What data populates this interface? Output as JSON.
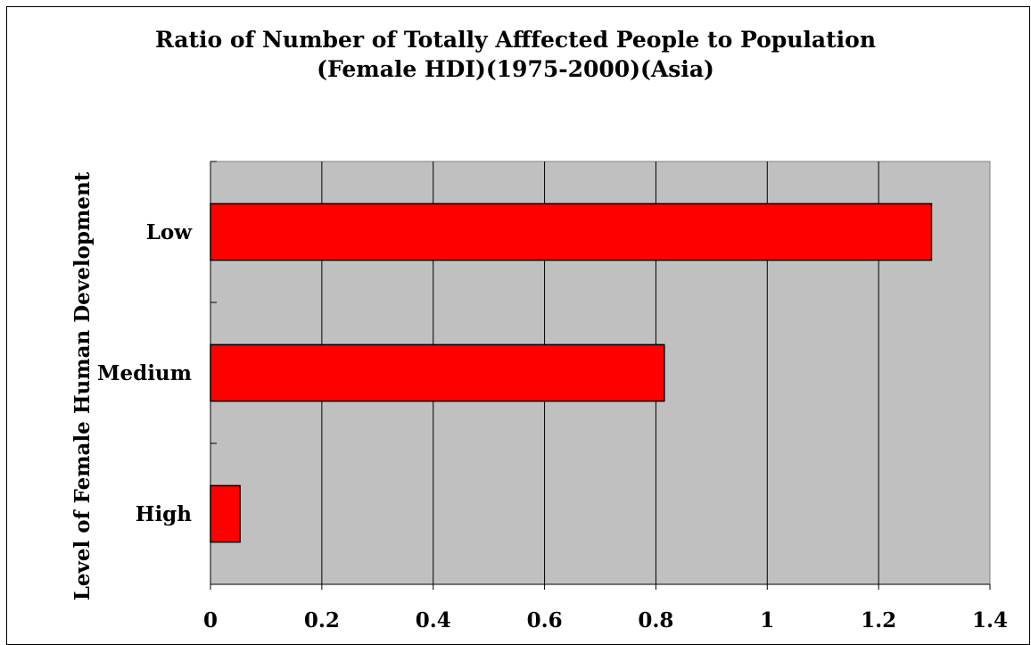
{
  "chart_data": {
    "type": "bar",
    "orientation": "horizontal",
    "title": "Ratio of Number of Totally Afffected People to Population\n(Female HDI)(1975-2000)(Asia)",
    "xlabel": "",
    "ylabel": "Level of Female Human Development",
    "categories": [
      "Low",
      "Medium",
      "High"
    ],
    "values": [
      1.295,
      0.815,
      0.053
    ],
    "xlim": [
      0,
      1.4
    ],
    "xticks": [
      "0",
      "0.2",
      "0.4",
      "0.6",
      "0.8",
      "1",
      "1.2",
      "1.4"
    ],
    "grid": true,
    "legend": "none",
    "colors": {
      "bar_fill": "#ff0000",
      "bar_stroke": "#000000",
      "plot_background": "#c0c0c0",
      "gridline": "#000000"
    }
  }
}
